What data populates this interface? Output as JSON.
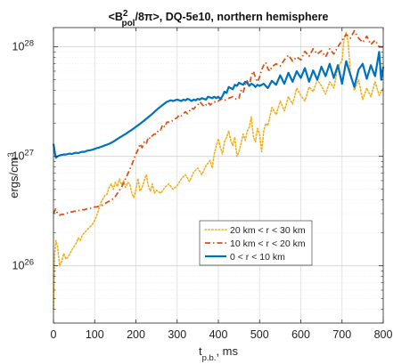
{
  "chart_data": {
    "type": "line",
    "title": {
      "main": "<B",
      "sup": "2",
      "sub": "pol",
      "rest": "/8π>, DQ-5e10, northern hemisphere"
    },
    "xlabel": {
      "main": "t",
      "sub": "p.b.",
      "rest": ", ms"
    },
    "ylabel": {
      "main": "ergs/cm",
      "sup": "3"
    },
    "xlim": [
      0,
      800
    ],
    "ylim": [
      3e+25,
      1.5e+28
    ],
    "y_scale": "log",
    "x_ticks": [
      0,
      100,
      200,
      300,
      400,
      500,
      600,
      700,
      800
    ],
    "y_ticks": [
      {
        "value": 1e+26,
        "base": "10",
        "exp": "26"
      },
      {
        "value": 1e+27,
        "base": "10",
        "exp": "27"
      },
      {
        "value": 1e+28,
        "base": "10",
        "exp": "28"
      }
    ],
    "grid": true,
    "legend_position": "lower-middle",
    "series": [
      {
        "name": "20 km < r < 30 km",
        "color": "#EDB120",
        "style": "dotted",
        "x": [
          0,
          3,
          6,
          10,
          15,
          20,
          25,
          30,
          35,
          40,
          45,
          50,
          55,
          60,
          65,
          70,
          75,
          80,
          85,
          90,
          95,
          100,
          105,
          110,
          115,
          120,
          125,
          130,
          135,
          140,
          145,
          150,
          155,
          160,
          165,
          170,
          175,
          180,
          185,
          190,
          195,
          200,
          205,
          210,
          215,
          220,
          225,
          230,
          235,
          240,
          245,
          250,
          260,
          270,
          280,
          290,
          300,
          310,
          320,
          330,
          340,
          350,
          360,
          370,
          380,
          385,
          390,
          395,
          400,
          405,
          410,
          415,
          420,
          425,
          430,
          435,
          440,
          445,
          450,
          455,
          460,
          465,
          470,
          475,
          480,
          485,
          490,
          495,
          500,
          505,
          510,
          515,
          520,
          530,
          540,
          550,
          560,
          570,
          580,
          590,
          600,
          610,
          620,
          630,
          640,
          650,
          660,
          670,
          680,
          690,
          700,
          705,
          710,
          715,
          720,
          730,
          740,
          750,
          760,
          770,
          780,
          790,
          800
        ],
        "values": [
          4e+25,
          1.3e+26,
          1.7e+26,
          1.5e+26,
          1e+26,
          1.1e+26,
          1.3e+26,
          1.15e+26,
          1.2e+26,
          1.3e+26,
          1.4e+26,
          1.5e+26,
          1.6e+26,
          1.8e+26,
          1.7e+26,
          1.9e+26,
          2e+26,
          2.1e+26,
          2.2e+26,
          2.3e+26,
          2.4e+26,
          2.6e+26,
          2.9e+26,
          3.3e+26,
          3.8e+26,
          4.1e+26,
          4.4e+26,
          4.5e+26,
          5.2e+26,
          5.6e+26,
          5e+26,
          5.8e+26,
          5.3e+26,
          6.2e+26,
          5.5e+26,
          6e+26,
          5.2e+26,
          5.8e+26,
          5.6e+26,
          4.6e+26,
          4.2e+26,
          5e+26,
          6.3e+26,
          4.8e+26,
          5.2e+26,
          6e+26,
          6.8e+26,
          5.4e+26,
          4.8e+26,
          5.6e+26,
          4.6e+26,
          4.9e+26,
          4.6e+26,
          5.2e+26,
          5.6e+26,
          5e+26,
          5.4e+26,
          6.2e+26,
          6.8e+26,
          5.9e+26,
          7.2e+26,
          7.8e+26,
          6.8e+26,
          8.2e+26,
          9.2e+26,
          7.8e+26,
          1.05e+27,
          1.25e+27,
          1.45e+27,
          1.2e+27,
          1.05e+27,
          1.35e+27,
          1.5e+27,
          1.7e+27,
          1.4e+27,
          1.25e+27,
          1.5e+27,
          1e+27,
          1.1e+27,
          1.3e+27,
          1.6e+27,
          1.4e+27,
          1.7e+27,
          1.85e+27,
          2.3e+27,
          1.5e+27,
          1.35e+27,
          1.8e+27,
          1.6e+27,
          1.1e+27,
          1.7e+27,
          2e+27,
          1.9e+27,
          2.8e+27,
          2.4e+27,
          3.2e+27,
          2.6e+27,
          3.5e+27,
          3e+27,
          4.2e+27,
          3.6e+27,
          3.2e+27,
          4.3e+27,
          3.9e+27,
          5e+27,
          4.4e+27,
          3.7e+27,
          4.8e+27,
          4.2e+27,
          6.5e+27,
          7.5e+27,
          1.2e+28,
          1.35e+28,
          1.1e+28,
          6e+27,
          4e+27,
          5e+27,
          3.3e+27,
          4.2e+27,
          3.5e+27,
          4.8e+27,
          3.6e+27,
          4.2e+27
        ]
      },
      {
        "name": "10 km < r < 20 km",
        "color": "#D95319",
        "style": "dashdot",
        "x": [
          0,
          5,
          10,
          15,
          20,
          25,
          30,
          35,
          40,
          45,
          50,
          55,
          60,
          65,
          70,
          75,
          80,
          85,
          90,
          95,
          100,
          105,
          110,
          115,
          120,
          125,
          130,
          135,
          140,
          145,
          150,
          155,
          160,
          165,
          170,
          175,
          180,
          185,
          190,
          195,
          200,
          205,
          210,
          215,
          220,
          225,
          230,
          235,
          240,
          245,
          250,
          255,
          260,
          265,
          270,
          275,
          280,
          285,
          290,
          295,
          300,
          305,
          310,
          315,
          320,
          325,
          330,
          335,
          340,
          345,
          350,
          355,
          360,
          365,
          370,
          375,
          380,
          385,
          390,
          395,
          400,
          405,
          410,
          415,
          420,
          425,
          430,
          435,
          440,
          445,
          450,
          455,
          460,
          465,
          470,
          475,
          480,
          485,
          490,
          495,
          500,
          505,
          510,
          515,
          520,
          525,
          530,
          540,
          550,
          560,
          570,
          580,
          590,
          600,
          610,
          620,
          630,
          640,
          650,
          660,
          670,
          680,
          690,
          700,
          710,
          720,
          730,
          740,
          750,
          760,
          770,
          780,
          790,
          800
        ],
        "values": [
          3e+26,
          3.3e+26,
          3e+26,
          2.9e+26,
          2.95e+26,
          2.95e+26,
          3e+26,
          3.05e+26,
          3.1e+26,
          3.1e+26,
          3.15e+26,
          3.15e+26,
          3.2e+26,
          3.2e+26,
          3.25e+26,
          3.25e+26,
          3.3e+26,
          3.35e+26,
          3.35e+26,
          3.4e+26,
          3.45e+26,
          3.45e+26,
          3.5e+26,
          3.55e+26,
          3.6e+26,
          3.7e+26,
          3.8e+26,
          3.9e+26,
          4e+26,
          4.1e+26,
          4.3e+26,
          4.6e+26,
          4.9e+26,
          5.2e+26,
          5.7e+26,
          6.3e+26,
          6.9e+26,
          7.6e+26,
          8.4e+26,
          9.4e+26,
          1.05e+27,
          1.15e+27,
          1.3e+27,
          1.2e+27,
          1.35e+27,
          1.3e+27,
          1.5e+27,
          1.45e+27,
          1.55e+27,
          1.6e+27,
          1.6e+27,
          1.75e+27,
          1.75e+27,
          1.95e+27,
          1.85e+27,
          2.05e+27,
          2.05e+27,
          2.05e+27,
          2.15e+27,
          2.2e+27,
          2.25e+27,
          2.4e+27,
          2.35e+27,
          2.45e+27,
          2.55e+27,
          2.45e+27,
          2.6e+27,
          2.75e+27,
          2.7e+27,
          2.85e+27,
          2.95e+27,
          3.15e+27,
          3e+27,
          2.85e+27,
          2.95e+27,
          3.1e+27,
          2.95e+27,
          3.05e+27,
          3.15e+27,
          3.1e+27,
          3.2e+27,
          3.3e+27,
          3.35e+27,
          3.25e+27,
          3.3e+27,
          3.4e+27,
          3.45e+27,
          3.5e+27,
          3.4e+27,
          3.3e+27,
          3.4e+27,
          4e+27,
          3.8e+27,
          4.5e+27,
          4.9e+27,
          4.3e+27,
          5.5e+27,
          6e+27,
          5.2e+27,
          4.8e+27,
          5.3e+27,
          6.2e+27,
          6.8e+27,
          7.2e+27,
          6.3e+27,
          6e+27,
          6.6e+27,
          7e+27,
          6.7e+27,
          7.6e+27,
          8.4e+27,
          7.4e+27,
          8.1e+27,
          7.6e+27,
          9.1e+27,
          8.2e+27,
          9.6e+27,
          8.6e+27,
          9.2e+27,
          8.1e+27,
          9.6e+27,
          8.6e+27,
          1e+28,
          1.15e+28,
          1.3e+28,
          1.2e+28,
          1.4e+28,
          1.2e+28,
          1.1e+28,
          1.25e+28,
          1.05e+28,
          1.15e+28,
          1e+28,
          1e+28
        ]
      },
      {
        "name": "0 < r < 10 km",
        "color": "#0072BD",
        "style": "solid",
        "x": [
          0,
          3,
          6,
          10,
          15,
          20,
          25,
          30,
          35,
          40,
          45,
          50,
          55,
          60,
          65,
          70,
          75,
          80,
          85,
          90,
          95,
          100,
          105,
          110,
          115,
          120,
          125,
          130,
          135,
          140,
          145,
          150,
          155,
          160,
          165,
          170,
          175,
          180,
          185,
          190,
          195,
          200,
          205,
          210,
          215,
          220,
          225,
          230,
          235,
          240,
          245,
          250,
          255,
          260,
          265,
          270,
          275,
          280,
          285,
          290,
          295,
          300,
          305,
          310,
          315,
          320,
          325,
          330,
          335,
          340,
          345,
          350,
          355,
          360,
          365,
          370,
          375,
          380,
          385,
          390,
          395,
          400,
          405,
          410,
          415,
          420,
          425,
          430,
          435,
          440,
          445,
          450,
          455,
          460,
          465,
          470,
          475,
          480,
          485,
          490,
          495,
          500,
          510,
          520,
          530,
          540,
          550,
          560,
          570,
          580,
          590,
          600,
          610,
          620,
          630,
          640,
          650,
          660,
          670,
          680,
          690,
          700,
          710,
          720,
          730,
          740,
          750,
          760,
          770,
          780,
          790,
          795,
          800
        ],
        "values": [
          1.3e+27,
          1.1e+27,
          9.7e+26,
          1e+27,
          1.02e+27,
          1.03e+27,
          1.04e+27,
          1.04e+27,
          1.05e+27,
          1.06e+27,
          1.05e+27,
          1.07e+27,
          1.08e+27,
          1.07e+27,
          1.09e+27,
          1.1e+27,
          1.1e+27,
          1.12e+27,
          1.13e+27,
          1.14e+27,
          1.15e+27,
          1.17e+27,
          1.19e+27,
          1.2e+27,
          1.22e+27,
          1.24e+27,
          1.26e+27,
          1.28e+27,
          1.3e+27,
          1.33e+27,
          1.36e+27,
          1.4e+27,
          1.44e+27,
          1.48e+27,
          1.52e+27,
          1.56e+27,
          1.6e+27,
          1.65e+27,
          1.7e+27,
          1.75e+27,
          1.8e+27,
          1.86e+27,
          1.92e+27,
          1.98e+27,
          2.05e+27,
          2.12e+27,
          2.2e+27,
          2.28e+27,
          2.36e+27,
          2.45e+27,
          2.55e+27,
          2.65e+27,
          2.75e+27,
          2.85e+27,
          2.95e+27,
          3.05e+27,
          3.15e+27,
          3.2e+27,
          3.25e+27,
          3.2e+27,
          3.25e+27,
          3.3e+27,
          3.25e+27,
          3.2e+27,
          3.3e+27,
          3.25e+27,
          3.35e+27,
          3.3e+27,
          3.2e+27,
          3.3e+27,
          3.25e+27,
          3.35e+27,
          3.3e+27,
          3.4e+27,
          3.35e+27,
          3.3e+27,
          3.5e+27,
          3.45e+27,
          3.4e+27,
          3.5e+27,
          3.4e+27,
          3.5e+27,
          3.35e+27,
          3.55e+27,
          3.9e+27,
          3.8e+27,
          4.3e+27,
          4.2e+27,
          4.1e+27,
          4.5e+27,
          4.4e+27,
          4.7e+27,
          4.6e+27,
          4.5e+27,
          4.8e+27,
          4.7e+27,
          4.4e+27,
          4.6e+27,
          4.5e+27,
          4.3e+27,
          4.5e+27,
          4.4e+27,
          4.6e+27,
          4.2e+27,
          4.9e+27,
          4.5e+27,
          5.5e+27,
          4.6e+27,
          5.8e+27,
          4.8e+27,
          6e+27,
          5.2e+27,
          6.4e+27,
          4.8e+27,
          6.1e+27,
          5e+27,
          6.6e+27,
          5.4e+27,
          7e+27,
          5.2e+27,
          6.8e+27,
          4.6e+27,
          7.4e+27,
          5.6e+27,
          4.3e+27,
          6.2e+27,
          7e+27,
          5.1e+27,
          6.8e+27,
          5.4e+27,
          9e+27,
          5e+27,
          6.6e+27
        ]
      }
    ]
  }
}
